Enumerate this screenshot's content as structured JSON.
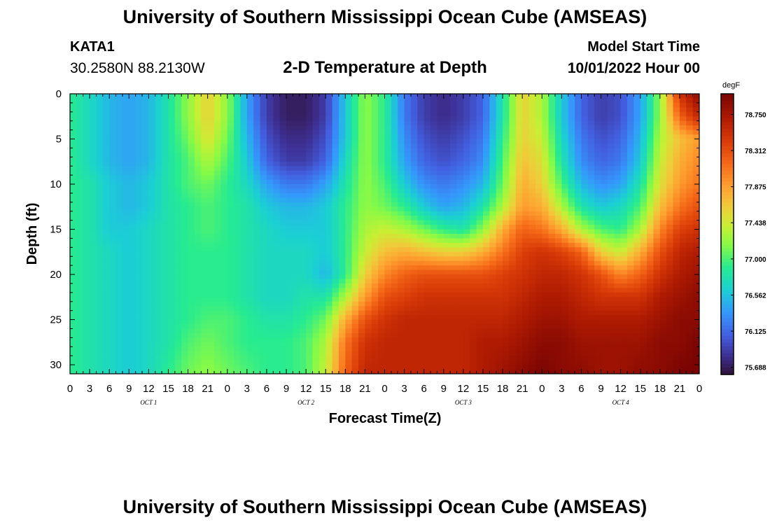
{
  "header": {
    "title": "University of Southern Mississippi Ocean Cube (AMSEAS)",
    "station": "KATA1",
    "coords": "30.2580N  88.2130W",
    "plot_title": "2-D Temperature at Depth",
    "model_start_label": "Model Start Time",
    "model_start_value": "10/01/2022 Hour 00"
  },
  "footer": {
    "title": "University of Southern Mississippi Ocean Cube (AMSEAS)"
  },
  "chart_data": {
    "type": "heatmap",
    "title": "2-D Temperature at Depth",
    "xlabel": "Forecast Time(Z)",
    "ylabel": "Depth (ft)",
    "x_hours_range": [
      0,
      96
    ],
    "ylim": [
      0,
      31
    ],
    "x_tick_labels": [
      "0",
      "3",
      "6",
      "9",
      "12",
      "15",
      "18",
      "21",
      "0",
      "3",
      "6",
      "9",
      "12",
      "15",
      "18",
      "21",
      "0",
      "3",
      "6",
      "9",
      "12",
      "15",
      "18",
      "21",
      "0",
      "3",
      "6",
      "9",
      "12",
      "15",
      "18",
      "21",
      "0"
    ],
    "y_ticks": [
      0,
      5,
      10,
      15,
      20,
      25,
      30
    ],
    "day_labels": [
      {
        "label": "OCT 1",
        "hour": 12
      },
      {
        "label": "OCT 2",
        "hour": 36
      },
      {
        "label": "OCT 3",
        "hour": 60
      },
      {
        "label": "OCT 4",
        "hour": 84
      }
    ],
    "colorbar": {
      "unit": "degF",
      "range": [
        75.6,
        79.0
      ],
      "tick_values": [
        "78.750",
        "78.312",
        "77.875",
        "77.438",
        "77.000",
        "76.562",
        "76.125",
        "75.688"
      ]
    },
    "depths_ft": [
      0,
      2.5,
      5,
      7.5,
      10,
      12.5,
      15,
      17.5,
      20,
      22.5,
      25,
      27.5,
      31
    ],
    "times_hr": [
      0,
      3,
      6,
      9,
      12,
      15,
      18,
      21,
      24,
      27,
      30,
      33,
      36,
      39,
      42,
      45,
      48,
      51,
      54,
      57,
      60,
      63,
      66,
      69,
      72,
      75,
      78,
      81,
      84,
      87,
      90,
      93,
      96
    ],
    "temperature_degF": [
      [
        76.9,
        76.7,
        76.5,
        76.4,
        76.5,
        76.8,
        77.2,
        77.6,
        77.2,
        76.4,
        75.9,
        75.7,
        75.7,
        75.9,
        76.6,
        77.2,
        76.9,
        76.2,
        75.9,
        75.8,
        75.9,
        76.1,
        76.8,
        77.6,
        77.3,
        76.6,
        76.1,
        75.9,
        76.0,
        76.4,
        77.2,
        78.5,
        78.9
      ],
      [
        76.9,
        76.7,
        76.5,
        76.4,
        76.5,
        76.8,
        77.2,
        77.6,
        77.2,
        76.4,
        75.9,
        75.7,
        75.7,
        75.9,
        76.6,
        77.2,
        76.9,
        76.2,
        75.9,
        75.8,
        75.9,
        76.1,
        76.8,
        77.6,
        77.3,
        76.6,
        76.1,
        75.9,
        76.0,
        76.4,
        77.2,
        78.2,
        78.6
      ],
      [
        76.9,
        76.7,
        76.5,
        76.4,
        76.5,
        76.8,
        77.1,
        77.5,
        77.1,
        76.5,
        76.0,
        75.8,
        75.8,
        76.0,
        76.6,
        77.2,
        76.9,
        76.3,
        76.0,
        75.9,
        76.0,
        76.2,
        76.9,
        77.6,
        77.4,
        76.7,
        76.2,
        76.0,
        76.1,
        76.5,
        77.3,
        77.7,
        77.9
      ],
      [
        76.9,
        76.7,
        76.5,
        76.4,
        76.5,
        76.8,
        77.0,
        77.3,
        77.0,
        76.6,
        76.1,
        75.9,
        75.9,
        76.1,
        76.7,
        77.2,
        76.9,
        76.4,
        76.1,
        76.0,
        76.1,
        76.3,
        77.0,
        77.7,
        77.5,
        76.8,
        76.3,
        76.1,
        76.2,
        76.6,
        77.4,
        77.8,
        78.0
      ],
      [
        76.9,
        76.8,
        76.6,
        76.5,
        76.6,
        76.8,
        77.0,
        77.1,
        76.9,
        76.7,
        76.4,
        76.2,
        76.2,
        76.4,
        76.8,
        77.2,
        77.0,
        76.6,
        76.3,
        76.2,
        76.3,
        76.5,
        77.1,
        77.8,
        77.6,
        77.0,
        76.5,
        76.3,
        76.4,
        76.8,
        77.5,
        77.9,
        78.1
      ],
      [
        76.9,
        76.8,
        76.6,
        76.5,
        76.6,
        76.8,
        76.9,
        77.0,
        76.9,
        76.8,
        76.6,
        76.5,
        76.5,
        76.6,
        76.9,
        77.2,
        77.1,
        76.9,
        76.6,
        76.4,
        76.5,
        76.8,
        77.3,
        77.9,
        77.8,
        77.3,
        76.8,
        76.6,
        76.7,
        77.0,
        77.7,
        78.1,
        78.3
      ],
      [
        76.9,
        76.8,
        76.6,
        76.6,
        76.7,
        76.8,
        76.9,
        77.0,
        76.9,
        76.8,
        76.7,
        76.6,
        76.6,
        76.6,
        76.9,
        77.3,
        77.4,
        77.3,
        77.1,
        76.9,
        76.8,
        77.2,
        77.8,
        78.2,
        78.1,
        77.8,
        77.3,
        77.0,
        76.9,
        77.3,
        78.0,
        78.4,
        78.5
      ],
      [
        76.9,
        76.8,
        76.7,
        76.6,
        76.7,
        76.8,
        76.9,
        76.9,
        76.9,
        76.8,
        76.7,
        76.7,
        76.7,
        76.6,
        76.9,
        77.4,
        77.7,
        77.8,
        77.7,
        77.6,
        77.6,
        77.8,
        78.1,
        78.4,
        78.5,
        78.4,
        78.2,
        77.6,
        77.4,
        77.8,
        78.3,
        78.6,
        78.7
      ],
      [
        76.9,
        76.8,
        76.7,
        76.6,
        76.7,
        76.8,
        76.9,
        76.9,
        76.9,
        76.8,
        76.7,
        76.7,
        76.7,
        76.5,
        76.9,
        77.6,
        78.0,
        78.2,
        78.3,
        78.3,
        78.3,
        78.3,
        78.4,
        78.5,
        78.6,
        78.6,
        78.5,
        78.3,
        78.0,
        78.2,
        78.5,
        78.7,
        78.8
      ],
      [
        76.9,
        76.8,
        76.7,
        76.6,
        76.7,
        76.8,
        76.9,
        76.9,
        76.9,
        76.8,
        76.7,
        76.7,
        76.8,
        76.8,
        77.3,
        77.9,
        78.3,
        78.4,
        78.5,
        78.5,
        78.5,
        78.5,
        78.5,
        78.6,
        78.7,
        78.7,
        78.6,
        78.5,
        78.5,
        78.5,
        78.7,
        78.8,
        78.9
      ],
      [
        76.9,
        76.8,
        76.7,
        76.6,
        76.7,
        76.8,
        76.9,
        77.0,
        77.0,
        76.9,
        76.8,
        76.8,
        76.9,
        77.1,
        77.8,
        78.3,
        78.5,
        78.6,
        78.6,
        78.6,
        78.6,
        78.6,
        78.6,
        78.7,
        78.8,
        78.8,
        78.7,
        78.7,
        78.7,
        78.7,
        78.8,
        78.9,
        78.9
      ],
      [
        76.9,
        76.8,
        76.7,
        76.6,
        76.7,
        76.8,
        77.0,
        77.1,
        77.0,
        76.9,
        76.9,
        76.9,
        77.0,
        77.3,
        78.1,
        78.5,
        78.6,
        78.6,
        78.6,
        78.6,
        78.6,
        78.7,
        78.7,
        78.8,
        78.9,
        78.9,
        78.8,
        78.8,
        78.8,
        78.8,
        78.9,
        78.9,
        79.0
      ],
      [
        76.9,
        76.8,
        76.7,
        76.6,
        76.7,
        76.9,
        77.1,
        77.2,
        77.1,
        77.0,
        76.9,
        76.9,
        77.0,
        77.4,
        78.2,
        78.6,
        78.6,
        78.6,
        78.6,
        78.6,
        78.6,
        78.7,
        78.8,
        78.9,
        79.0,
        78.9,
        78.9,
        78.8,
        78.8,
        78.9,
        78.9,
        79.0,
        79.0
      ]
    ]
  }
}
